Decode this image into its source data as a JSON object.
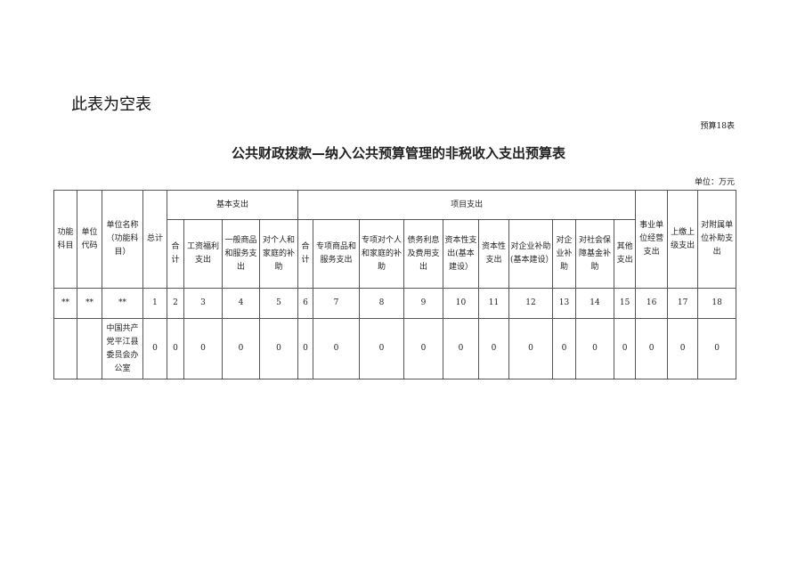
{
  "note": "此表为空表",
  "table_code": "预算18表",
  "title": "公共财政拨款—纳入公共预算管理的非税收入支出预算表",
  "unit": "单位：万元",
  "headers": {
    "func": "功能科目",
    "unit_code": "单位代码",
    "unit_name": "单位名称（功能科目）",
    "total": "总计",
    "basic": "基本支出",
    "project": "项目支出",
    "basic_cols": [
      "合计",
      "工资福利支出",
      "一般商品和服务支出",
      "对个人和家庭的补助"
    ],
    "project_cols": [
      "合计",
      "专项商品和服务支出",
      "专项对个人和家庭的补助",
      "债务利息及费用支出",
      "资本性支出(基本建设）",
      "资本性支出",
      "对企业补助(基本建设）",
      "对企业补助",
      "对社会保障基金补助",
      "其他支出"
    ],
    "tail_cols": [
      "事业单位经营支出",
      "上缴上级支出",
      "对附属单位补助支出"
    ]
  },
  "number_row": [
    "**",
    "**",
    "**",
    "1",
    "2",
    "3",
    "4",
    "5",
    "6",
    "7",
    "8",
    "9",
    "10",
    "11",
    "12",
    "13",
    "14",
    "15",
    "16",
    "17",
    "18"
  ],
  "data_row": [
    "",
    "",
    "中国共产党平江县委员会办公室",
    "0",
    "0",
    "0",
    "0",
    "0",
    "0",
    "0",
    "0",
    "0",
    "0",
    "0",
    "0",
    "0",
    "0",
    "0",
    "0",
    "0",
    "0"
  ]
}
